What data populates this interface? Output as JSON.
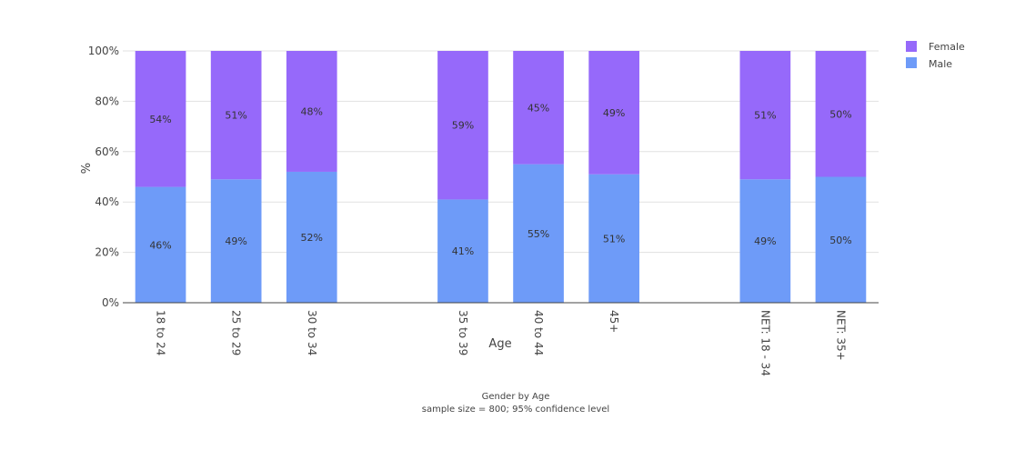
{
  "chart_data": {
    "type": "bar",
    "stacked": true,
    "categories": [
      "18 to 24",
      "25 to 29",
      "30 to 34",
      "",
      "35 to 39",
      "40 to 44",
      "45+",
      "",
      "NET: 18 - 34",
      "NET: 35+"
    ],
    "series": [
      {
        "name": "Male",
        "color": "#6e9bf8",
        "values": [
          46,
          49,
          52,
          null,
          41,
          55,
          51,
          null,
          49,
          50
        ],
        "labels": [
          "46%",
          "49%",
          "52%",
          null,
          "41%",
          "55%",
          "51%",
          null,
          "49%",
          "50%"
        ]
      },
      {
        "name": "Female",
        "color": "#9669fa",
        "values": [
          54,
          51,
          48,
          null,
          59,
          45,
          49,
          null,
          51,
          50
        ],
        "labels": [
          "54%",
          "51%",
          "48%",
          null,
          "59%",
          "45%",
          "49%",
          null,
          "51%",
          "50%"
        ]
      }
    ],
    "ylim": [
      0,
      100
    ],
    "yticks": [
      "0%",
      "20%",
      "40%",
      "60%",
      "80%",
      "100%"
    ],
    "ytick_values": [
      0,
      20,
      40,
      60,
      80,
      100
    ],
    "xlabel": "Age",
    "ylabel": "%",
    "legend": [
      "Female",
      "Male"
    ],
    "legend_position": "top-right",
    "caption_title": "Gender by Age",
    "caption_subtitle": "sample size = 800; 95% confidence level"
  }
}
